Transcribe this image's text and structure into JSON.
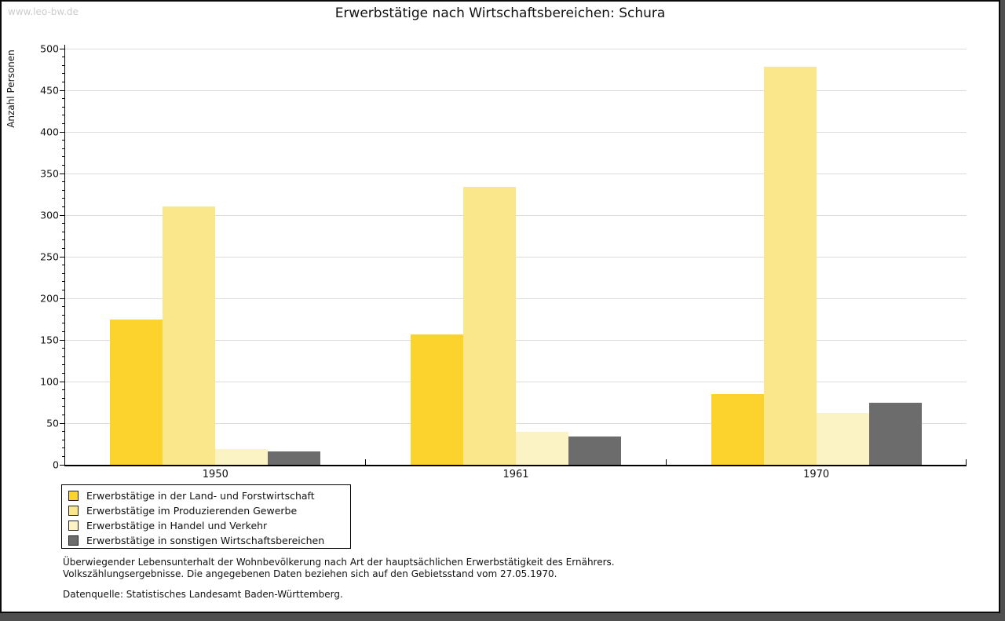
{
  "watermark": "www.leo-bw.de",
  "chart_data": {
    "type": "bar",
    "title": "Erwerbstätige nach Wirtschaftsbereichen: Schura",
    "categories": [
      "1950",
      "1961",
      "1970"
    ],
    "series": [
      {
        "name": "Erwerbstätige in der Land- und Forstwirtschaft",
        "color": "#FCD32D",
        "values": [
          175,
          157,
          85
        ]
      },
      {
        "name": "Erwerbstätige im Produzierenden Gewerbe",
        "color": "#FBE78B",
        "values": [
          310,
          334,
          478
        ]
      },
      {
        "name": "Erwerbstätige in Handel und Verkehr",
        "color": "#FBF3C4",
        "values": [
          19,
          40,
          62
        ]
      },
      {
        "name": "Erwerbstätige in sonstigen Wirtschaftsbereichen",
        "color": "#6C6C6C",
        "values": [
          16,
          34,
          75
        ]
      }
    ],
    "ylabel": "Anzahl Personen",
    "xlabel": "",
    "ylim": [
      0,
      500
    ],
    "ytick_step": 50,
    "yminor_step": 10,
    "grid": true,
    "legend_position": "bottom-left",
    "gridline_color": "#dcdcdc"
  },
  "footnotes": {
    "line1": "Überwiegender Lebensunterhalt der Wohnbevölkerung nach Art der hauptsächlichen Erwerbstätigkeit des Ernährers.",
    "line2": "Volkszählungsergebnisse. Die angegebenen Daten beziehen sich auf den Gebietsstand vom 27.05.1970.",
    "source": "Datenquelle: Statistisches Landesamt Baden-Württemberg."
  }
}
